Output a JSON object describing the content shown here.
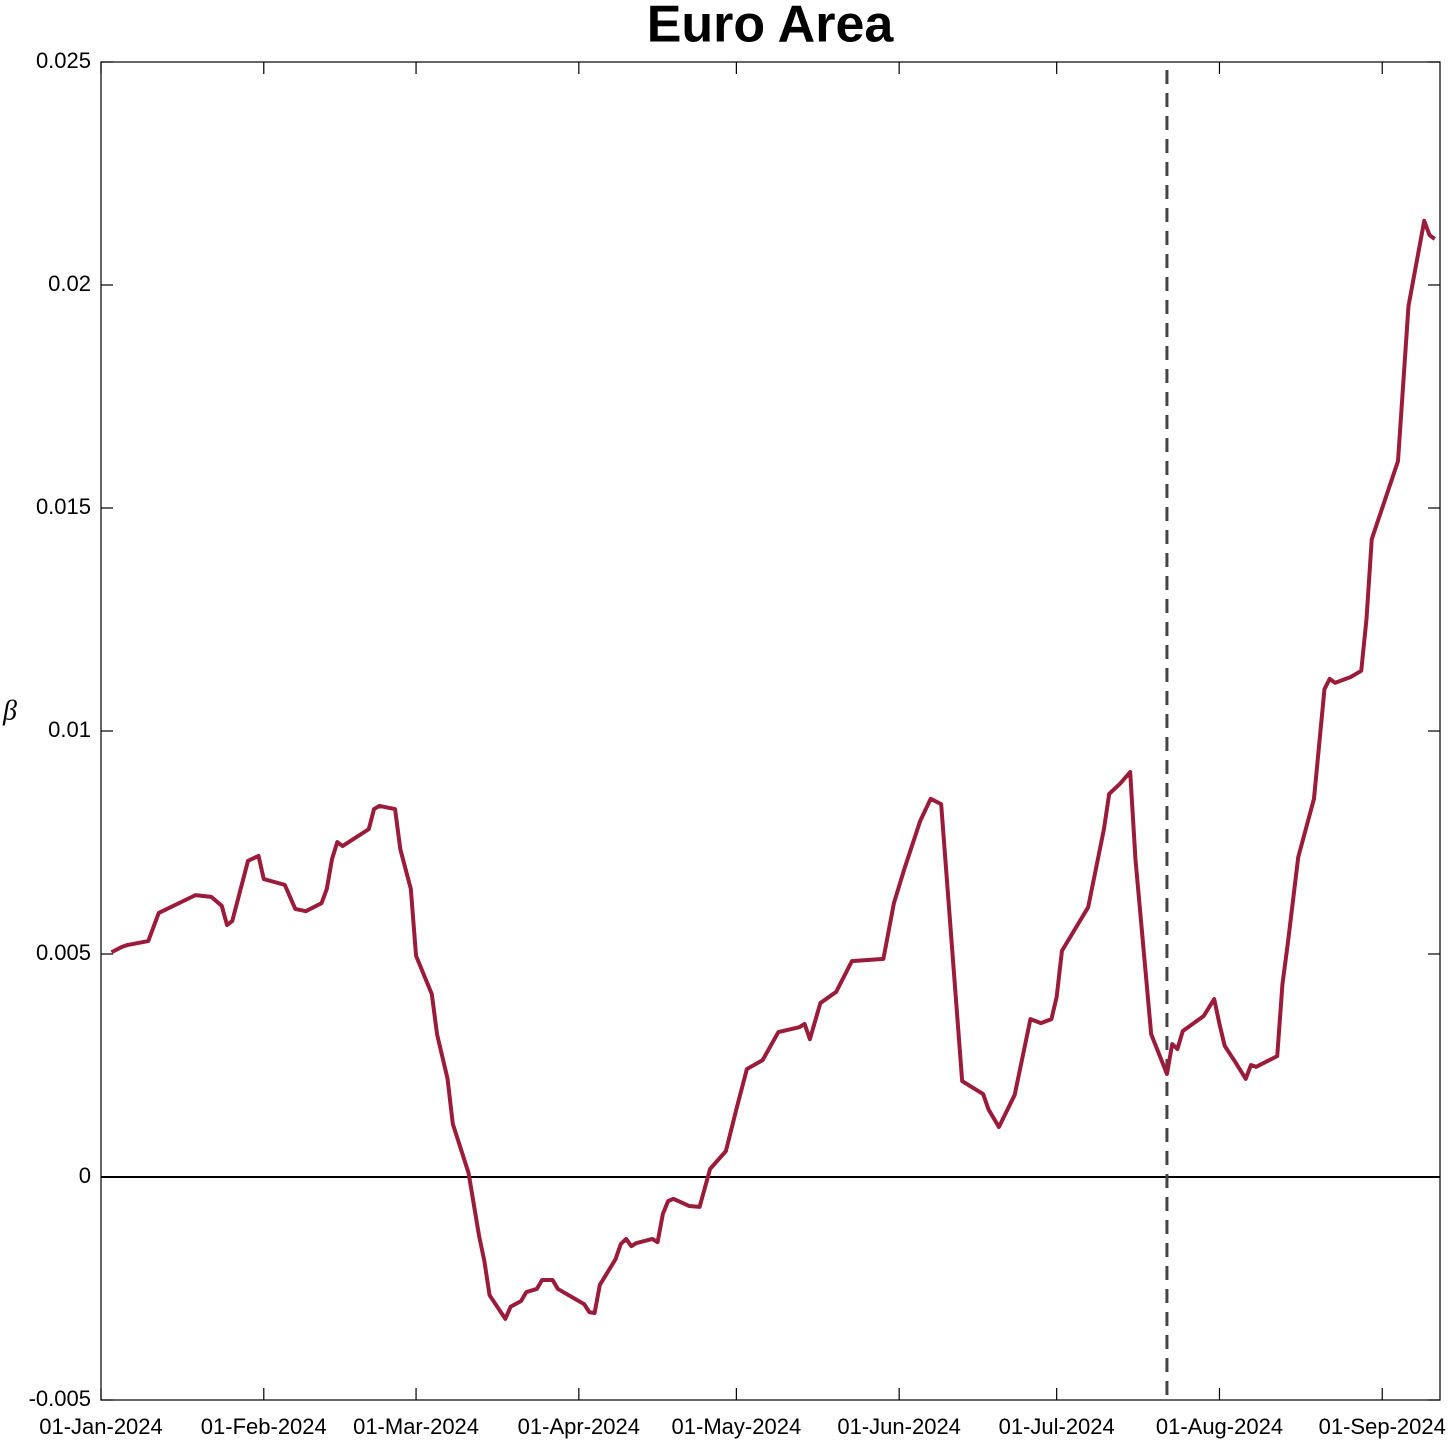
{
  "chart_data": {
    "type": "line",
    "title": "Euro Area",
    "y_label": "β",
    "x": [
      "2024-01-03",
      "2024-01-05",
      "2024-01-06",
      "2024-01-10",
      "2024-01-12",
      "2024-01-19",
      "2024-01-22",
      "2024-01-24",
      "2024-01-25",
      "2024-01-26",
      "2024-01-29",
      "2024-01-31",
      "2024-02-01",
      "2024-02-05",
      "2024-02-07",
      "2024-02-09",
      "2024-02-12",
      "2024-02-13",
      "2024-02-14",
      "2024-02-15",
      "2024-02-16",
      "2024-02-21",
      "2024-02-22",
      "2024-02-23",
      "2024-02-26",
      "2024-02-27",
      "2024-02-29",
      "2024-03-01",
      "2024-03-04",
      "2024-03-05",
      "2024-03-07",
      "2024-03-08",
      "2024-03-11",
      "2024-03-13",
      "2024-03-14",
      "2024-03-15",
      "2024-03-18",
      "2024-03-19",
      "2024-03-21",
      "2024-03-22",
      "2024-03-24",
      "2024-03-25",
      "2024-03-27",
      "2024-03-28",
      "2024-04-02",
      "2024-04-03",
      "2024-04-04",
      "2024-04-05",
      "2024-04-08",
      "2024-04-09",
      "2024-04-10",
      "2024-04-11",
      "2024-04-12",
      "2024-04-15",
      "2024-04-16",
      "2024-04-17",
      "2024-04-18",
      "2024-04-19",
      "2024-04-22",
      "2024-04-24",
      "2024-04-26",
      "2024-04-29",
      "2024-05-01",
      "2024-05-03",
      "2024-05-06",
      "2024-05-09",
      "2024-05-13",
      "2024-05-14",
      "2024-05-15",
      "2024-05-17",
      "2024-05-20",
      "2024-05-23",
      "2024-05-29",
      "2024-05-31",
      "2024-06-02",
      "2024-06-05",
      "2024-06-07",
      "2024-06-09",
      "2024-06-13",
      "2024-06-17",
      "2024-06-18",
      "2024-06-20",
      "2024-06-23",
      "2024-06-26",
      "2024-06-28",
      "2024-06-30",
      "2024-07-01",
      "2024-07-02",
      "2024-07-07",
      "2024-07-10",
      "2024-07-11",
      "2024-07-13",
      "2024-07-15",
      "2024-07-16",
      "2024-07-19",
      "2024-07-22",
      "2024-07-23",
      "2024-07-24",
      "2024-07-25",
      "2024-07-29",
      "2024-07-31",
      "2024-08-01",
      "2024-08-02",
      "2024-08-04",
      "2024-08-06",
      "2024-08-07",
      "2024-08-08",
      "2024-08-12",
      "2024-08-13",
      "2024-08-14",
      "2024-08-16",
      "2024-08-19",
      "2024-08-21",
      "2024-08-22",
      "2024-08-23",
      "2024-08-26",
      "2024-08-28",
      "2024-08-29",
      "2024-08-30",
      "2024-09-04",
      "2024-09-06",
      "2024-09-09",
      "2024-09-10",
      "2024-09-11"
    ],
    "values": [
      0.00504,
      0.00516,
      0.0052,
      0.00529,
      0.00592,
      0.00632,
      0.00628,
      0.00608,
      0.00565,
      0.00574,
      0.00709,
      0.0072,
      0.00668,
      0.00655,
      0.00601,
      0.00596,
      0.00614,
      0.00646,
      0.00713,
      0.00751,
      0.00742,
      0.0078,
      0.00825,
      0.00832,
      0.00825,
      0.00735,
      0.00646,
      0.00496,
      0.0041,
      0.0032,
      0.0022,
      0.00119,
      9e-05,
      -0.00132,
      -0.00188,
      -0.00265,
      -0.00318,
      -0.00291,
      -0.00278,
      -0.00258,
      -0.00251,
      -0.00231,
      -0.00231,
      -0.00251,
      -0.00285,
      -0.00303,
      -0.00305,
      -0.00242,
      -0.00184,
      -0.0015,
      -0.00139,
      -0.00155,
      -0.00148,
      -0.00139,
      -0.00146,
      -0.00083,
      -0.00054,
      -0.00049,
      -0.00065,
      -0.00067,
      0.00018,
      0.00058,
      0.00152,
      0.00242,
      0.00262,
      0.00325,
      0.00336,
      0.00343,
      0.00309,
      0.0039,
      0.00415,
      0.00484,
      0.00489,
      0.00614,
      0.00691,
      0.00798,
      0.00848,
      0.00836,
      0.00215,
      0.00186,
      0.00152,
      0.00112,
      0.00184,
      0.00354,
      0.00345,
      0.00354,
      0.00404,
      0.00507,
      0.00605,
      0.0078,
      0.00859,
      0.00881,
      0.00908,
      0.00713,
      0.0032,
      0.00231,
      0.00298,
      0.00287,
      0.00327,
      0.00361,
      0.00399,
      0.00343,
      0.00294,
      0.00258,
      0.0022,
      0.00251,
      0.00247,
      0.00271,
      0.00433,
      0.00522,
      0.00717,
      0.00848,
      0.01094,
      0.01117,
      0.01108,
      0.01121,
      0.01135,
      0.01251,
      0.0143,
      0.01605,
      0.01953,
      0.02144,
      0.02112,
      0.02103
    ],
    "color": "#9b1b3a",
    "xlim": [
      "2024-01-01",
      "2024-09-12"
    ],
    "xticks": [
      {
        "value": "2024-01-01",
        "label": "01-Jan-2024"
      },
      {
        "value": "2024-02-01",
        "label": "01-Feb-2024"
      },
      {
        "value": "2024-03-01",
        "label": "01-Mar-2024"
      },
      {
        "value": "2024-04-01",
        "label": "01-Apr-2024"
      },
      {
        "value": "2024-05-01",
        "label": "01-May-2024"
      },
      {
        "value": "2024-06-01",
        "label": "01-Jun-2024"
      },
      {
        "value": "2024-07-01",
        "label": "01-Jul-2024"
      },
      {
        "value": "2024-08-01",
        "label": "01-Aug-2024"
      },
      {
        "value": "2024-09-01",
        "label": "01-Sep-2024"
      }
    ],
    "ylim": [
      -0.005,
      0.025
    ],
    "yticks": [
      -0.005,
      0,
      0.005,
      0.01,
      0.015,
      0.02,
      0.025
    ],
    "grid": false,
    "zero_line": true,
    "vline": {
      "x": "2024-07-22",
      "style": "dashed",
      "color": "#444444"
    }
  }
}
